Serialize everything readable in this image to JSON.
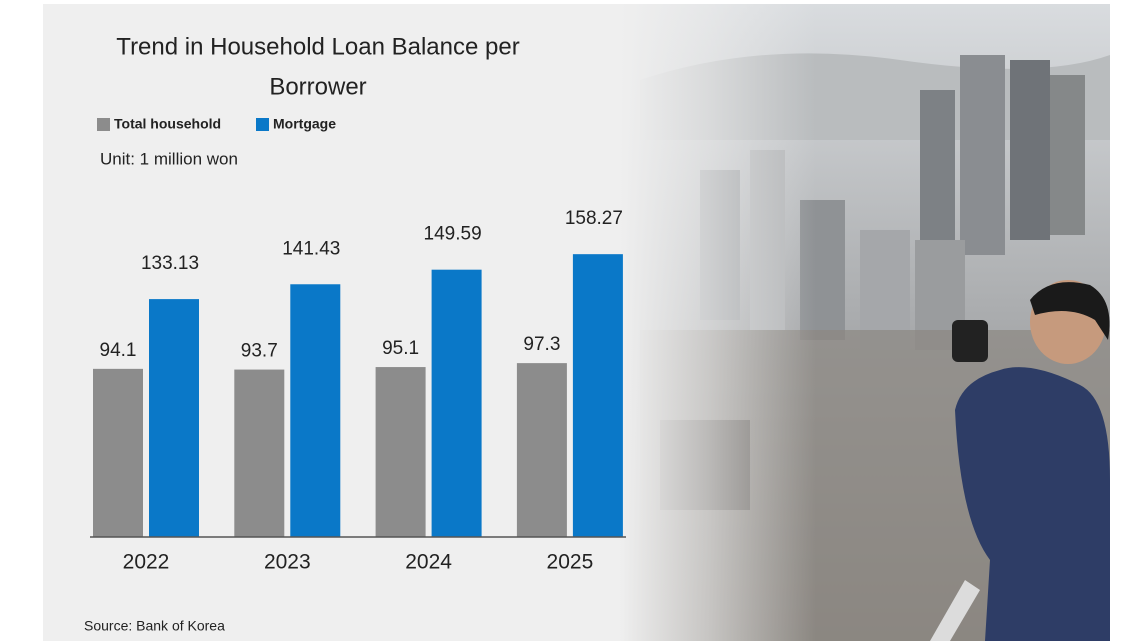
{
  "chart_data": {
    "type": "bar",
    "title": "Trend in Household Loan Balance per Borrower",
    "title_lines": [
      "Trend in Household Loan Balance per",
      "Borrower"
    ],
    "unit": "Unit: 1 million won",
    "source": "Source: Bank of Korea",
    "categories": [
      "2022",
      "2023",
      "2024",
      "2025"
    ],
    "series": [
      {
        "name": "Total household",
        "color": "#8c8c8c",
        "values": [
          94.1,
          93.7,
          95.1,
          97.3
        ]
      },
      {
        "name": "Mortgage",
        "color": "#0a78c8",
        "values": [
          133.13,
          141.43,
          149.59,
          158.27
        ]
      }
    ]
  }
}
